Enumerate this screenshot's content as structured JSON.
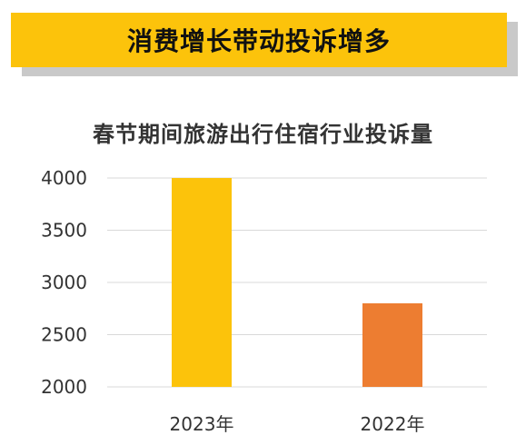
{
  "banner": {
    "title": "消费增长带动投诉增多"
  },
  "colors": {
    "banner_bg": "#fcc30b",
    "banner_shadow": "#c9c9c9",
    "gridline": "#d9d9d9",
    "bar_2023": "#fcc30b",
    "bar_2022": "#ed7d31"
  },
  "chart_data": {
    "type": "bar",
    "title": "春节期间旅游出行住宿行业投诉量",
    "categories": [
      "2023年",
      "2022年"
    ],
    "values": [
      4000,
      2800
    ],
    "bar_colors": [
      "#fcc30b",
      "#ed7d31"
    ],
    "ylim": [
      2000,
      4000
    ],
    "yticks": [
      2000,
      2500,
      3000,
      3500,
      4000
    ],
    "xlabel": "",
    "ylabel": "",
    "grid": true,
    "legend": "none"
  }
}
